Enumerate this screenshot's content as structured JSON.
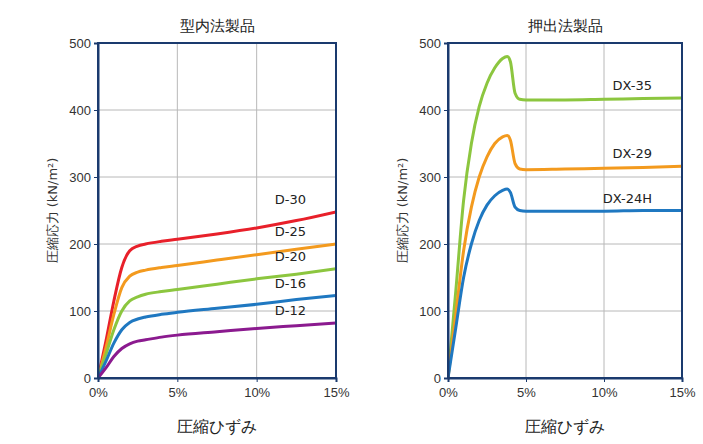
{
  "chart_data": [
    {
      "type": "line",
      "title": "型内法製品",
      "x_label": "圧縮ひずみ",
      "y_label": "圧縮応力 (kN/m²)",
      "x": [
        0,
        0.5,
        1,
        1.5,
        2,
        2.5,
        3,
        4,
        5,
        7.5,
        10,
        12.5,
        15
      ],
      "series": [
        {
          "name": "D-30",
          "color": "#e8202a",
          "values": [
            0,
            55,
            115,
            165,
            190,
            197,
            200,
            204,
            207,
            215,
            224,
            235,
            248
          ]
        },
        {
          "name": "D-25",
          "color": "#f39a1e",
          "values": [
            0,
            45,
            95,
            135,
            152,
            158,
            161,
            165,
            168,
            176,
            184,
            192,
            200
          ]
        },
        {
          "name": "D-20",
          "color": "#8cc63f",
          "values": [
            0,
            35,
            72,
            100,
            115,
            121,
            125,
            129,
            132,
            140,
            148,
            155,
            163
          ]
        },
        {
          "name": "D-16",
          "color": "#1f78c1",
          "values": [
            0,
            25,
            52,
            72,
            83,
            88,
            91,
            95,
            98,
            104,
            110,
            117,
            123
          ]
        },
        {
          "name": "D-12",
          "color": "#8b1a8f",
          "values": [
            0,
            15,
            32,
            44,
            51,
            55,
            57,
            61,
            64,
            69,
            74,
            78,
            82
          ]
        }
      ],
      "xlim": [
        0,
        15
      ],
      "xticks": [
        {
          "value": 0,
          "label": "0%"
        },
        {
          "value": 5,
          "label": "5%"
        },
        {
          "value": 10,
          "label": "10%"
        },
        {
          "value": 15,
          "label": "15%"
        }
      ],
      "ylim": [
        0,
        500
      ],
      "yticks": [
        0,
        100,
        200,
        300,
        400,
        500
      ],
      "grid": true
    },
    {
      "type": "line",
      "title": "押出法製品",
      "x_label": "圧縮ひずみ",
      "y_label": "圧縮応力 (kN/m²)",
      "x": [
        0,
        0.5,
        1,
        1.5,
        2,
        2.5,
        3,
        3.5,
        3.8,
        4,
        4.3,
        4.6,
        5,
        7.5,
        10,
        12.5,
        15
      ],
      "series": [
        {
          "name": "DX-35",
          "color": "#8cc63f",
          "values": [
            0,
            130,
            265,
            350,
            405,
            440,
            463,
            477,
            480,
            472,
            425,
            416,
            415,
            415,
            416,
            417,
            418
          ]
        },
        {
          "name": "DX-29",
          "color": "#f39a1e",
          "values": [
            0,
            95,
            190,
            255,
            300,
            330,
            350,
            360,
            362,
            355,
            320,
            312,
            311,
            312,
            313,
            314,
            316
          ]
        },
        {
          "name": "DX-24H",
          "color": "#1f78c1",
          "values": [
            0,
            75,
            150,
            200,
            235,
            258,
            272,
            280,
            282,
            277,
            255,
            250,
            249,
            249,
            249,
            250,
            250
          ]
        }
      ],
      "xlim": [
        0,
        15
      ],
      "xticks": [
        {
          "value": 0,
          "label": "0%"
        },
        {
          "value": 5,
          "label": "5%"
        },
        {
          "value": 10,
          "label": "10%"
        },
        {
          "value": 15,
          "label": "15%"
        }
      ],
      "ylim": [
        0,
        500
      ],
      "yticks": [
        0,
        100,
        200,
        300,
        400,
        500
      ],
      "grid": true
    }
  ]
}
